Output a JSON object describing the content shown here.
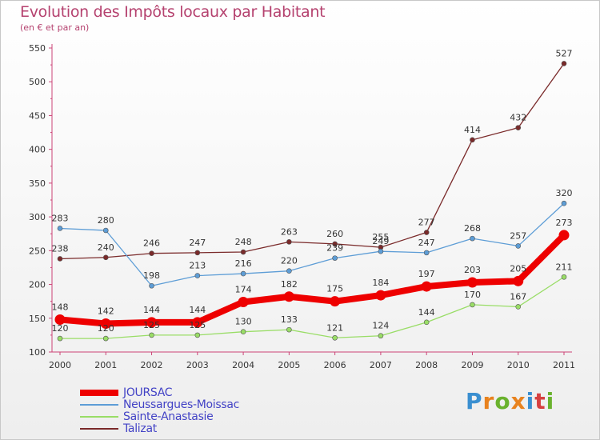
{
  "header": {
    "title": "Evolution des Impôts locaux par Habitant",
    "subtitle": "(en € et par an)"
  },
  "logo": {
    "letters": [
      "P",
      "r",
      "o",
      "x",
      "i",
      "t",
      "i"
    ],
    "colors": [
      "#3a8fd0",
      "#e8821e",
      "#6ab22e",
      "#e8821e",
      "#3a8fd0",
      "#d64040",
      "#6ab22e"
    ]
  },
  "chart_data": {
    "type": "line",
    "x": [
      "2000",
      "2001",
      "2002",
      "2003",
      "2004",
      "2005",
      "2006",
      "2007",
      "2008",
      "2009",
      "2010",
      "2011"
    ],
    "ylim": [
      100,
      550
    ],
    "yticks": [
      100,
      150,
      200,
      250,
      300,
      350,
      400,
      450,
      500,
      550
    ],
    "grid": false,
    "legend_position": "bottom-left",
    "series": [
      {
        "name": "JOURSAC",
        "color": "#ee0000",
        "values": [
          148,
          142,
          144,
          144,
          174,
          182,
          175,
          184,
          197,
          203,
          205,
          273
        ]
      },
      {
        "name": "Neussargues-Moissac",
        "color": "#5d9dd6",
        "values": [
          283,
          280,
          198,
          213,
          216,
          220,
          239,
          249,
          247,
          268,
          257,
          320
        ]
      },
      {
        "name": "Sainte-Anastasie",
        "color": "#99dd66",
        "values": [
          120,
          120,
          125,
          125,
          130,
          133,
          121,
          124,
          144,
          170,
          167,
          211
        ]
      },
      {
        "name": "Talizat",
        "color": "#7a2a2a",
        "values": [
          238,
          240,
          246,
          247,
          248,
          263,
          260,
          255,
          277,
          414,
          432,
          527
        ]
      }
    ]
  }
}
